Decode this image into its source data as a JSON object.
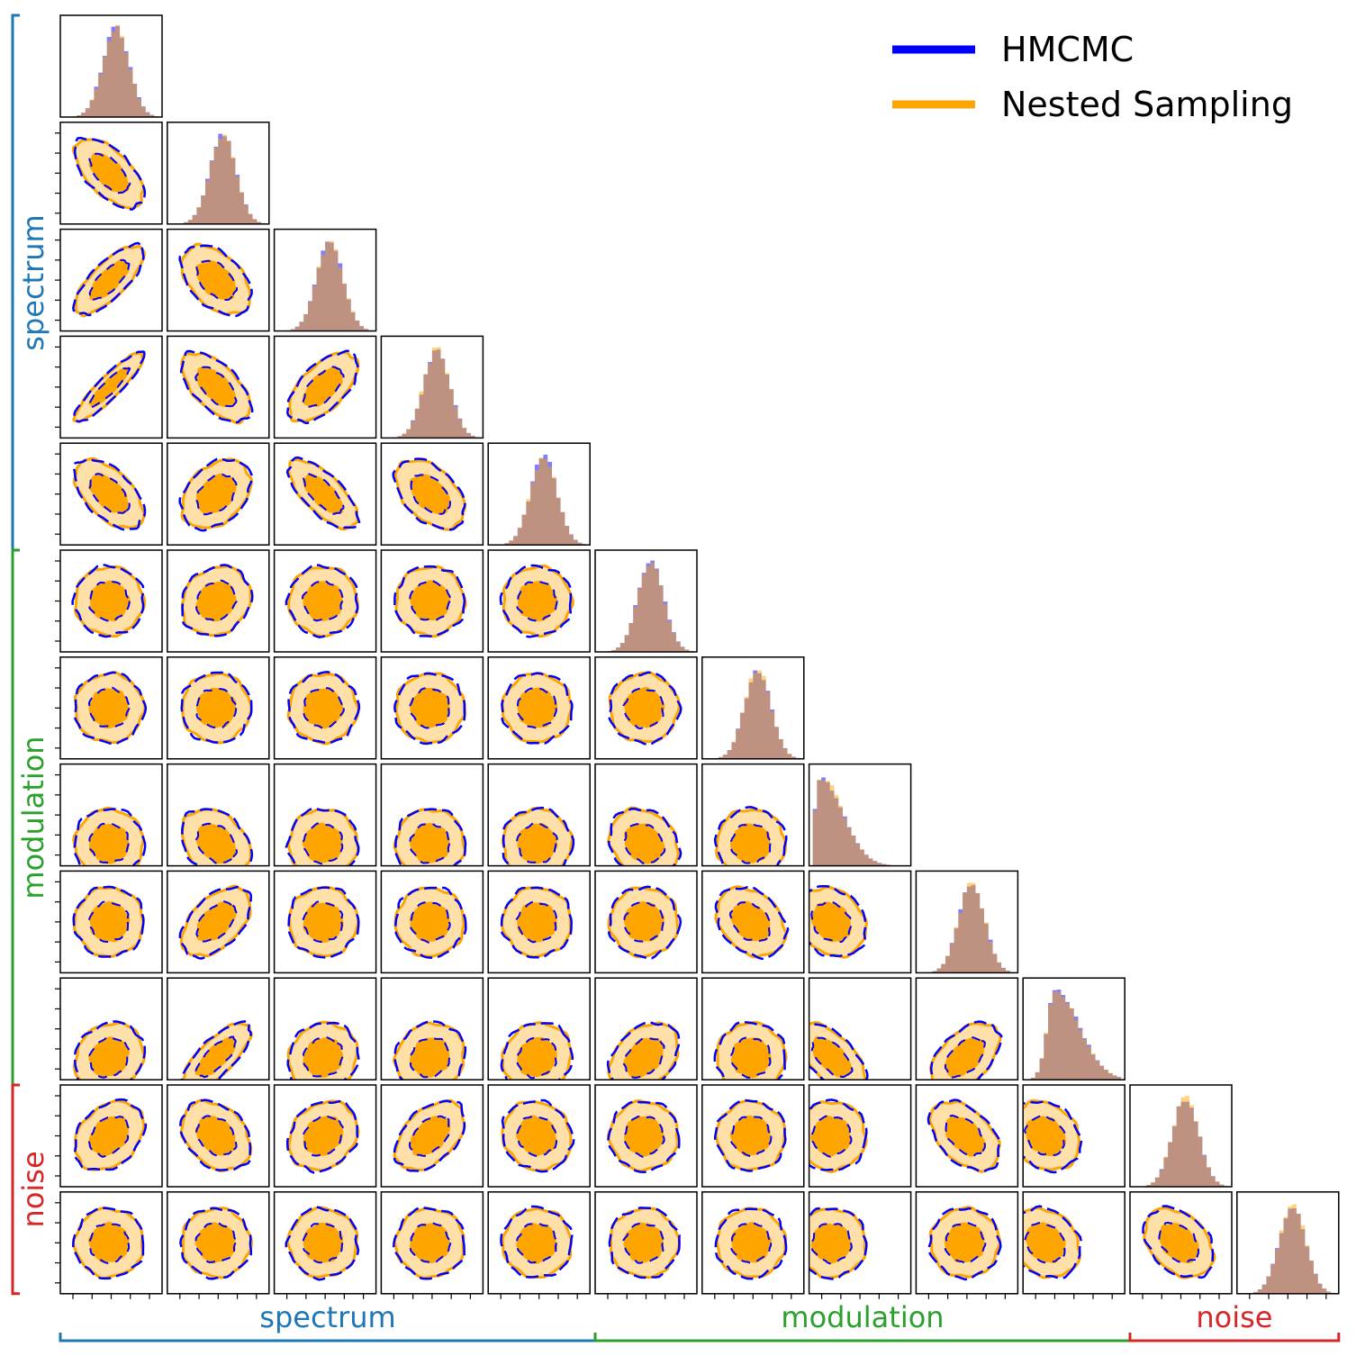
{
  "chart_data": {
    "type": "corner",
    "legend": {
      "placement": "top-right",
      "entries": [
        {
          "label": "HMCMC",
          "color": "#0000ff"
        },
        {
          "label": "Nested Sampling",
          "color": "#ffa500"
        }
      ]
    },
    "groups": [
      {
        "label": "spectrum",
        "color": "#1f77b4",
        "params": 5
      },
      {
        "label": "modulation",
        "color": "#2ca02c",
        "params": 5
      },
      {
        "label": "noise",
        "color": "#d62728",
        "params": 2
      }
    ],
    "n_params": 12,
    "marginal_skew": [
      0,
      0,
      0,
      0,
      0,
      0,
      0,
      1,
      0,
      0.6,
      0,
      0
    ],
    "correlation_matrix": [
      [
        1.0,
        -0.6,
        0.75,
        0.9,
        -0.55,
        0,
        0,
        0,
        0,
        0.15,
        0.3,
        0
      ],
      [
        -0.6,
        1.0,
        -0.45,
        -0.6,
        0.35,
        0.15,
        0,
        -0.3,
        0.5,
        0.75,
        -0.3,
        0
      ],
      [
        0.75,
        -0.45,
        1.0,
        0.6,
        -0.7,
        0,
        0,
        0,
        0,
        0.1,
        0.2,
        0
      ],
      [
        0.9,
        -0.6,
        0.6,
        1.0,
        -0.45,
        0,
        0,
        0,
        0,
        0.1,
        0.45,
        0
      ],
      [
        -0.55,
        0.35,
        -0.7,
        -0.45,
        1.0,
        0,
        0,
        0,
        0,
        0.1,
        -0.1,
        0
      ],
      [
        0,
        0.15,
        0,
        0,
        0,
        1.0,
        0,
        -0.2,
        0,
        0.35,
        0,
        0
      ],
      [
        0,
        0,
        0,
        0,
        0,
        0,
        1.0,
        0,
        -0.3,
        0,
        0,
        0
      ],
      [
        0,
        -0.3,
        0,
        0,
        0,
        -0.2,
        0,
        1.0,
        -0.2,
        -0.6,
        0,
        0
      ],
      [
        0,
        0.5,
        0,
        0,
        0,
        0,
        -0.3,
        -0.2,
        1.0,
        0.5,
        -0.45,
        0
      ],
      [
        0.15,
        0.75,
        0.1,
        0.1,
        0.1,
        0.35,
        0,
        -0.6,
        0.5,
        1.0,
        -0.2,
        -0.2
      ],
      [
        0.3,
        -0.3,
        0.2,
        0.45,
        -0.1,
        0,
        0,
        0,
        -0.45,
        -0.2,
        1.0,
        -0.35
      ],
      [
        0,
        0,
        0,
        0,
        0,
        0,
        0,
        0,
        0,
        -0.2,
        -0.35,
        1.0
      ]
    ],
    "grid": false
  }
}
